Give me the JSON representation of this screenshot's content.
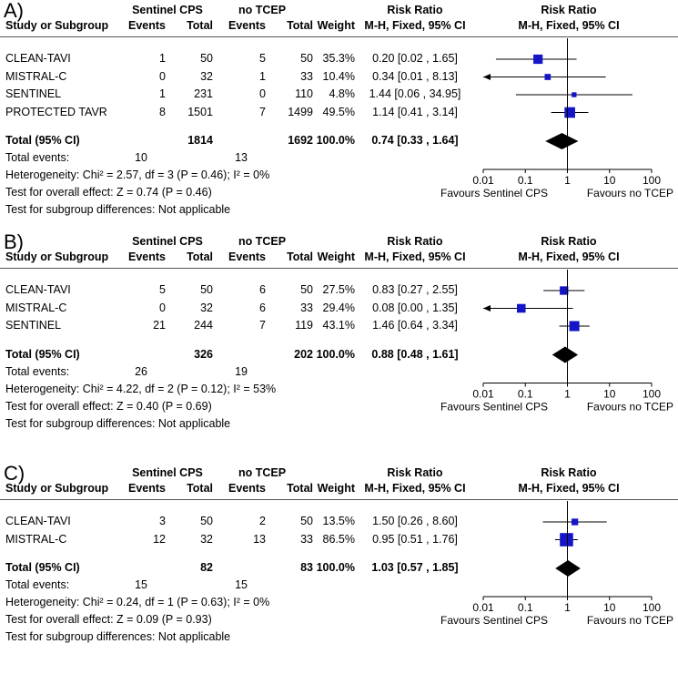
{
  "column_headers": {
    "study": "Study or Subgroup",
    "group1": "Sentinel CPS",
    "group2": "no TCEP",
    "events": "Events",
    "total": "Total",
    "weight": "Weight",
    "rr_title": "Risk Ratio",
    "rr_method": "M-H, Fixed, 95% CI"
  },
  "chart_data": [
    {
      "type": "forest",
      "panel_label": "A)",
      "scale": "log",
      "axis_ticks": [
        "0.01",
        "0.1",
        "1",
        "10",
        "100"
      ],
      "axis_tick_values": [
        0.01,
        0.1,
        1,
        10,
        100
      ],
      "axis_left_label": "Favours Sentinel CPS",
      "axis_right_label": "Favours no TCEP",
      "studies": [
        {
          "name": "CLEAN-TAVI",
          "e1": "1",
          "t1": "50",
          "e2": "5",
          "t2": "50",
          "weight": "35.3%",
          "ci_text": "0.20 [0.02 , 1.65]",
          "rr": 0.2,
          "lo": 0.02,
          "hi": 1.65,
          "w": 35.3
        },
        {
          "name": "MISTRAL-C",
          "e1": "0",
          "t1": "32",
          "e2": "1",
          "t2": "33",
          "weight": "10.4%",
          "ci_text": "0.34 [0.01 , 8.13]",
          "rr": 0.34,
          "lo": 0.01,
          "hi": 8.13,
          "w": 10.4
        },
        {
          "name": "SENTINEL",
          "e1": "1",
          "t1": "231",
          "e2": "0",
          "t2": "110",
          "weight": "4.8%",
          "ci_text": "1.44 [0.06 , 34.95]",
          "rr": 1.44,
          "lo": 0.06,
          "hi": 34.95,
          "w": 4.8
        },
        {
          "name": "PROTECTED TAVR",
          "e1": "8",
          "t1": "1501",
          "e2": "7",
          "t2": "1499",
          "weight": "49.5%",
          "ci_text": "1.14 [0.41 , 3.14]",
          "rr": 1.14,
          "lo": 0.41,
          "hi": 3.14,
          "w": 49.5
        }
      ],
      "total": {
        "label": "Total (95% CI)",
        "t1": "1814",
        "t2": "1692",
        "weight": "100.0%",
        "ci_text": "0.74 [0.33 , 1.64]",
        "rr": 0.74,
        "lo": 0.33,
        "hi": 1.64
      },
      "total_events": {
        "label": "Total events:",
        "e1": "10",
        "e2": "13"
      },
      "heterogeneity": "Heterogeneity: Chi² = 2.57, df = 3 (P = 0.46); I² = 0%",
      "overall_effect": "Test for overall effect: Z = 0.74 (P = 0.46)",
      "subgroup_diff": "Test for subgroup differences: Not applicable"
    },
    {
      "type": "forest",
      "panel_label": "B)",
      "scale": "log",
      "axis_ticks": [
        "0.01",
        "0.1",
        "1",
        "10",
        "100"
      ],
      "axis_tick_values": [
        0.01,
        0.1,
        1,
        10,
        100
      ],
      "axis_left_label": "Favours Sentinel CPS",
      "axis_right_label": "Favours no TCEP",
      "studies": [
        {
          "name": "CLEAN-TAVI",
          "e1": "5",
          "t1": "50",
          "e2": "6",
          "t2": "50",
          "weight": "27.5%",
          "ci_text": "0.83 [0.27 , 2.55]",
          "rr": 0.83,
          "lo": 0.27,
          "hi": 2.55,
          "w": 27.5
        },
        {
          "name": "MISTRAL-C",
          "e1": "0",
          "t1": "32",
          "e2": "6",
          "t2": "33",
          "weight": "29.4%",
          "ci_text": "0.08 [0.00 , 1.35]",
          "rr": 0.08,
          "lo": 0.0,
          "hi": 1.35,
          "w": 29.4
        },
        {
          "name": "SENTINEL",
          "e1": "21",
          "t1": "244",
          "e2": "7",
          "t2": "119",
          "weight": "43.1%",
          "ci_text": "1.46 [0.64 , 3.34]",
          "rr": 1.46,
          "lo": 0.64,
          "hi": 3.34,
          "w": 43.1
        }
      ],
      "total": {
        "label": "Total (95% CI)",
        "t1": "326",
        "t2": "202",
        "weight": "100.0%",
        "ci_text": "0.88 [0.48 , 1.61]",
        "rr": 0.88,
        "lo": 0.48,
        "hi": 1.61
      },
      "total_events": {
        "label": "Total events:",
        "e1": "26",
        "e2": "19"
      },
      "heterogeneity": "Heterogeneity: Chi² = 4.22, df = 2 (P = 0.12); I² = 53%",
      "overall_effect": "Test for overall effect: Z = 0.40 (P = 0.69)",
      "subgroup_diff": "Test for subgroup differences: Not applicable"
    },
    {
      "type": "forest",
      "panel_label": "C)",
      "scale": "log",
      "axis_ticks": [
        "0.01",
        "0.1",
        "1",
        "10",
        "100"
      ],
      "axis_tick_values": [
        0.01,
        0.1,
        1,
        10,
        100
      ],
      "axis_left_label": "Favours Sentinel CPS",
      "axis_right_label": "Favours no TCEP",
      "studies": [
        {
          "name": "CLEAN-TAVI",
          "e1": "3",
          "t1": "50",
          "e2": "2",
          "t2": "50",
          "weight": "13.5%",
          "ci_text": "1.50 [0.26 , 8.60]",
          "rr": 1.5,
          "lo": 0.26,
          "hi": 8.6,
          "w": 13.5
        },
        {
          "name": "MISTRAL-C",
          "e1": "12",
          "t1": "32",
          "e2": "13",
          "t2": "33",
          "weight": "86.5%",
          "ci_text": "0.95 [0.51 , 1.76]",
          "rr": 0.95,
          "lo": 0.51,
          "hi": 1.76,
          "w": 86.5
        }
      ],
      "total": {
        "label": "Total (95% CI)",
        "t1": "82",
        "t2": "83",
        "weight": "100.0%",
        "ci_text": "1.03 [0.57 , 1.85]",
        "rr": 1.03,
        "lo": 0.57,
        "hi": 1.85
      },
      "total_events": {
        "label": "Total events:",
        "e1": "15",
        "e2": "15"
      },
      "heterogeneity": "Heterogeneity: Chi² = 0.24, df = 1 (P = 0.63); I² = 0%",
      "overall_effect": "Test for overall effect: Z = 0.09 (P = 0.93)",
      "subgroup_diff": "Test for subgroup differences: Not applicable"
    }
  ],
  "colors": {
    "study_marker": "#1515c8",
    "summary_diamond": "#000000",
    "axis": "#000000"
  }
}
